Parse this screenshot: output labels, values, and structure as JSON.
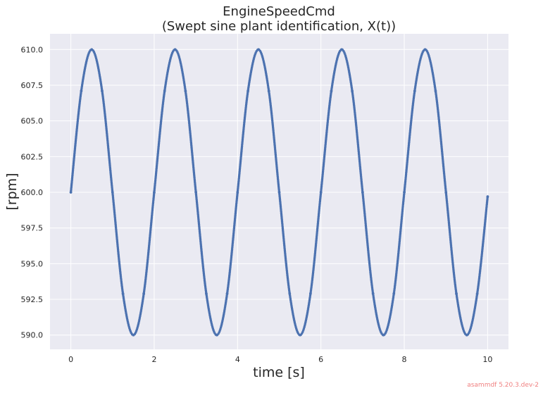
{
  "chart_data": {
    "type": "line",
    "title": "EngineSpeedCmd",
    "subtitle": "(Swept sine plant identification, X(t))",
    "xlabel": "time [s]",
    "ylabel": "[rpm]",
    "xlim": [
      -0.5,
      10.5
    ],
    "ylim": [
      589,
      611.1
    ],
    "xticks": [
      0,
      2,
      4,
      6,
      8,
      10
    ],
    "xtick_labels": [
      "0",
      "2",
      "4",
      "6",
      "8",
      "10"
    ],
    "yticks": [
      590.0,
      592.5,
      595.0,
      597.5,
      600.0,
      602.5,
      605.0,
      607.5,
      610.0
    ],
    "ytick_labels": [
      "590.0",
      "592.5",
      "595.0",
      "597.5",
      "600.0",
      "602.5",
      "605.0",
      "607.5",
      "610.0"
    ],
    "grid": true,
    "legend": "none",
    "series": [
      {
        "color": "#4c72b0",
        "marker": "dot",
        "x": [
          0,
          0.25,
          0.5,
          0.75,
          1,
          1.25,
          1.5,
          1.75,
          2,
          2.25,
          2.5,
          2.75,
          3,
          3.25,
          3.5,
          3.75,
          4,
          4.25,
          4.5,
          4.75,
          5,
          5.25,
          5.5,
          5.75,
          6,
          6.25,
          6.5,
          6.75,
          7,
          7.25,
          7.5,
          7.75,
          8,
          8.25,
          8.5,
          8.75,
          9,
          9.25,
          9.5,
          9.75,
          10
        ],
        "y": [
          600.0,
          607.1,
          610.0,
          607.1,
          600.0,
          592.9,
          590.0,
          592.9,
          600.0,
          607.1,
          610.0,
          607.1,
          600.0,
          592.9,
          590.0,
          592.9,
          600.0,
          607.1,
          610.0,
          607.1,
          600.0,
          592.9,
          590.0,
          592.9,
          600.0,
          607.1,
          610.0,
          607.1,
          600.0,
          592.9,
          590.0,
          592.9,
          600.0,
          607.1,
          610.0,
          607.1,
          600.0,
          592.9,
          590.0,
          592.9,
          599.7
        ]
      }
    ]
  },
  "footer": {
    "watermark": "asammdf 5.20.3.dev-2"
  },
  "colors": {
    "plot_background": "#eaeaf2",
    "grid": "#ffffff",
    "series": "#4c72b0",
    "watermark": "#f08080"
  }
}
